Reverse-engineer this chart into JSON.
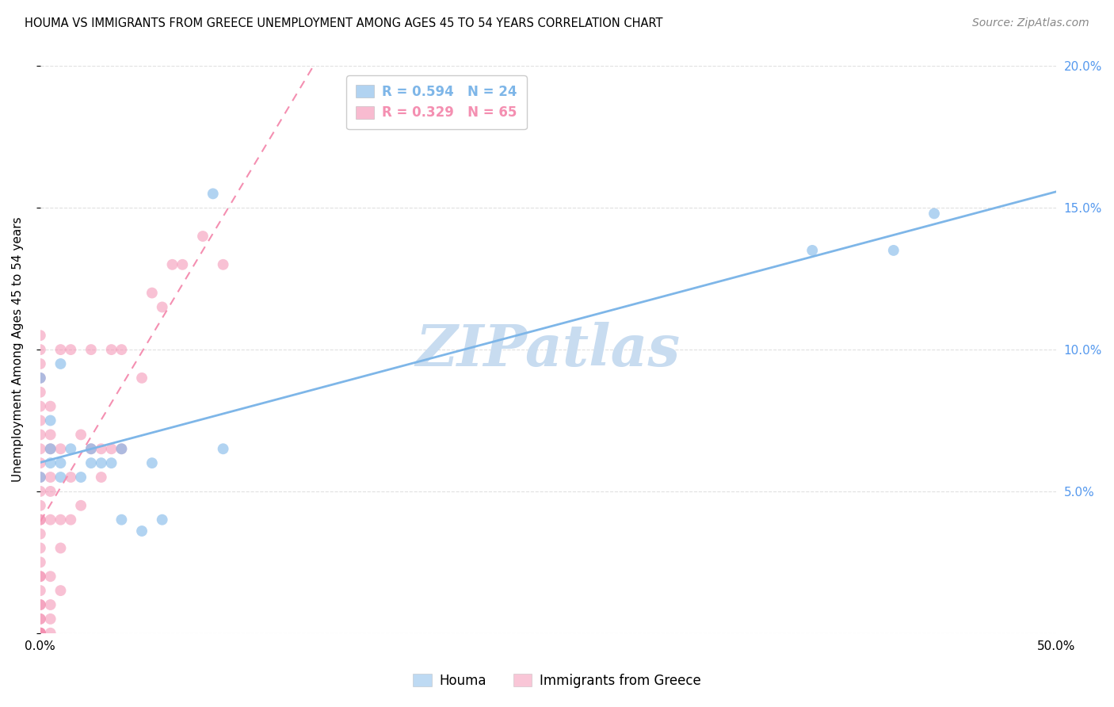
{
  "title": "HOUMA VS IMMIGRANTS FROM GREECE UNEMPLOYMENT AMONG AGES 45 TO 54 YEARS CORRELATION CHART",
  "source": "Source: ZipAtlas.com",
  "ylabel": "Unemployment Among Ages 45 to 54 years",
  "xlim": [
    0.0,
    0.5
  ],
  "ylim": [
    0.0,
    0.2
  ],
  "houma_color": "#7EB6E8",
  "greece_color": "#F48FB1",
  "houma_R": 0.594,
  "houma_N": 24,
  "greece_R": 0.329,
  "greece_N": 65,
  "watermark": "ZIPatlas",
  "watermark_color": "#C8DCF0",
  "houma_points_x": [
    0.0,
    0.0,
    0.005,
    0.005,
    0.005,
    0.01,
    0.01,
    0.01,
    0.015,
    0.02,
    0.025,
    0.025,
    0.03,
    0.035,
    0.04,
    0.04,
    0.05,
    0.055,
    0.06,
    0.085,
    0.09,
    0.38,
    0.42,
    0.44
  ],
  "houma_points_y": [
    0.055,
    0.09,
    0.065,
    0.06,
    0.075,
    0.055,
    0.06,
    0.095,
    0.065,
    0.055,
    0.06,
    0.065,
    0.06,
    0.06,
    0.04,
    0.065,
    0.036,
    0.06,
    0.04,
    0.155,
    0.065,
    0.135,
    0.135,
    0.148
  ],
  "greece_points_x": [
    0.0,
    0.0,
    0.0,
    0.0,
    0.0,
    0.0,
    0.0,
    0.0,
    0.0,
    0.0,
    0.0,
    0.0,
    0.0,
    0.0,
    0.0,
    0.0,
    0.0,
    0.0,
    0.0,
    0.0,
    0.0,
    0.0,
    0.0,
    0.0,
    0.0,
    0.0,
    0.0,
    0.0,
    0.0,
    0.0,
    0.005,
    0.005,
    0.005,
    0.005,
    0.005,
    0.005,
    0.005,
    0.005,
    0.005,
    0.005,
    0.01,
    0.01,
    0.01,
    0.01,
    0.01,
    0.015,
    0.015,
    0.015,
    0.02,
    0.02,
    0.025,
    0.025,
    0.03,
    0.03,
    0.035,
    0.035,
    0.04,
    0.04,
    0.05,
    0.055,
    0.06,
    0.065,
    0.07,
    0.08,
    0.09
  ],
  "greece_points_y": [
    0.0,
    0.0,
    0.0,
    0.0,
    0.0,
    0.005,
    0.005,
    0.01,
    0.01,
    0.015,
    0.02,
    0.02,
    0.025,
    0.03,
    0.035,
    0.04,
    0.04,
    0.045,
    0.05,
    0.055,
    0.06,
    0.065,
    0.07,
    0.075,
    0.08,
    0.085,
    0.09,
    0.095,
    0.1,
    0.105,
    0.0,
    0.005,
    0.01,
    0.02,
    0.04,
    0.05,
    0.055,
    0.065,
    0.07,
    0.08,
    0.015,
    0.03,
    0.04,
    0.065,
    0.1,
    0.04,
    0.055,
    0.1,
    0.045,
    0.07,
    0.065,
    0.1,
    0.055,
    0.065,
    0.065,
    0.1,
    0.065,
    0.1,
    0.09,
    0.12,
    0.115,
    0.13,
    0.13,
    0.14,
    0.13
  ],
  "grid_color": "#E0E0E0",
  "background_color": "#FFFFFF",
  "title_fontsize": 10.5,
  "axis_label_fontsize": 11,
  "tick_fontsize": 11,
  "legend_fontsize": 12,
  "source_fontsize": 10
}
